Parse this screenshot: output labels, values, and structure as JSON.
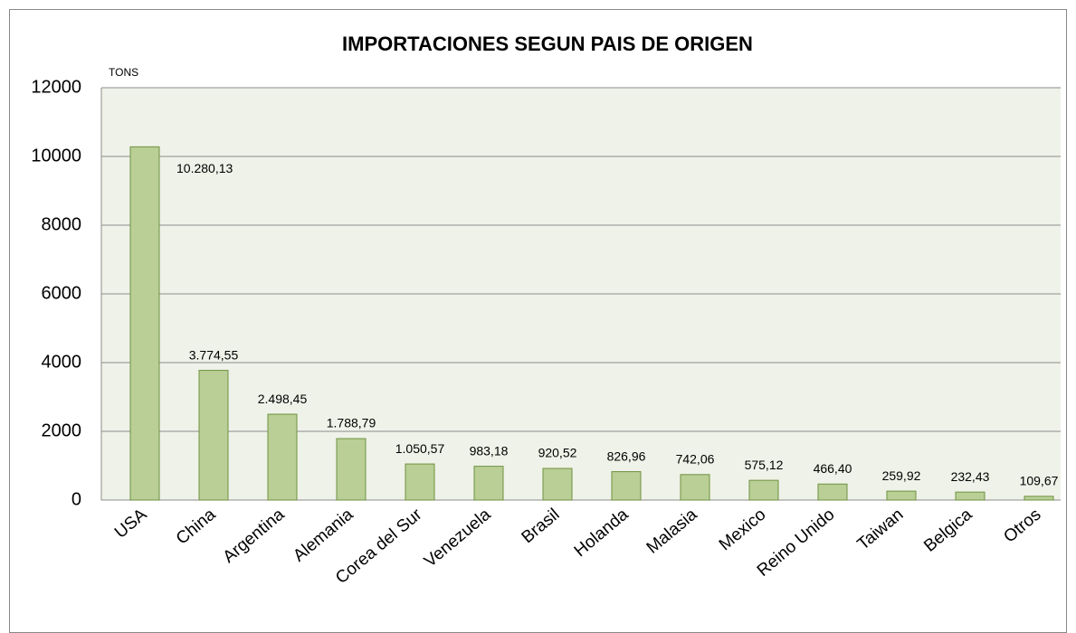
{
  "chart_data": {
    "type": "bar",
    "title": "IMPORTACIONES SEGUN PAIS DE ORIGEN",
    "y_label": "TONS",
    "categories": [
      "USA",
      "China",
      "Argentina",
      "Alemania",
      "Corea del Sur",
      "Venezuela",
      "Brasil",
      "Holanda",
      "Malasia",
      "Mexico",
      "Reino Unido",
      "Taiwan",
      "Belgica",
      "Otros"
    ],
    "values": [
      10280.13,
      3774.55,
      2498.45,
      1788.79,
      1050.57,
      983.18,
      920.52,
      826.96,
      742.06,
      575.12,
      466.4,
      259.92,
      232.43,
      109.67
    ],
    "value_labels": [
      "10.280,13",
      "3.774,55",
      "2.498,45",
      "1.788,79",
      "1.050,57",
      "983,18",
      "920,52",
      "826,96",
      "742,06",
      "575,12",
      "466,40",
      "259,92",
      "232,43",
      "109,67"
    ],
    "color": "#b9cf96",
    "ylim": [
      0,
      12000
    ],
    "yticks": [
      0,
      2000,
      4000,
      6000,
      8000,
      10000,
      12000
    ],
    "grid": true
  }
}
